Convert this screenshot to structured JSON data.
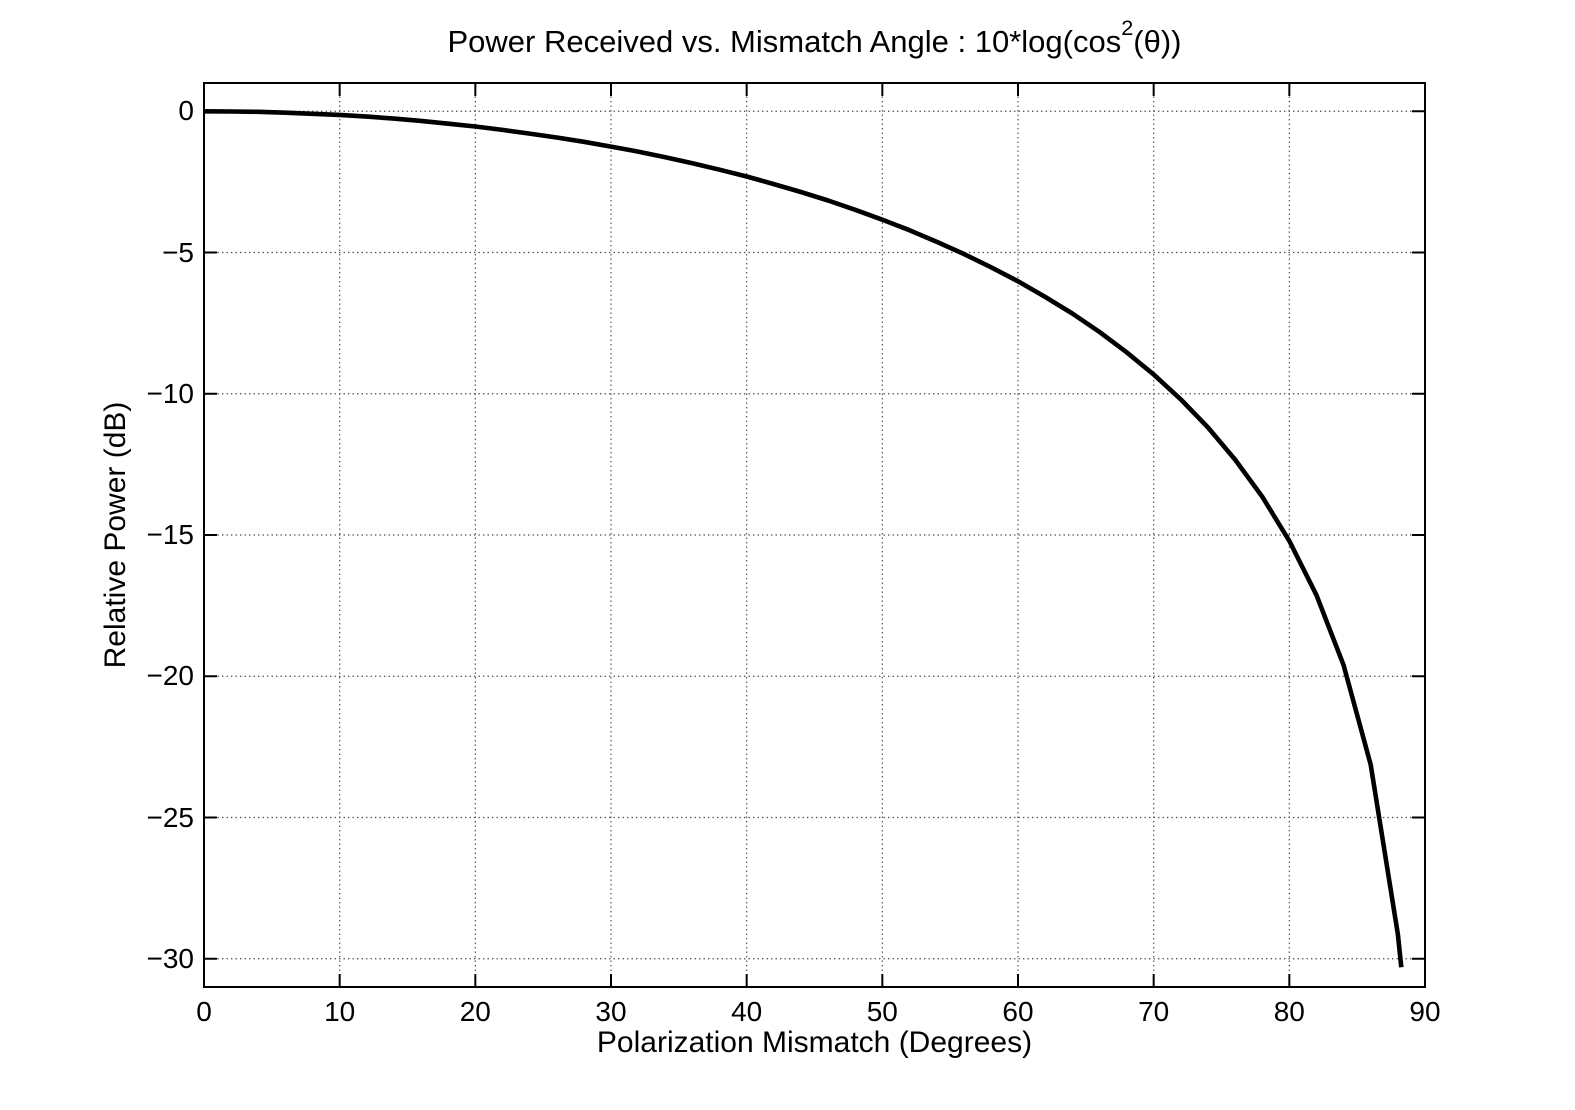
{
  "figure": {
    "background": "#ffffff",
    "text_color": "#000000"
  },
  "chart_data": {
    "type": "line",
    "title": "Power Received vs. Mismatch Angle : 10*log(cos2(θ))",
    "title_parts": {
      "pre": "Power Received vs. Mismatch Angle : 10*log(cos",
      "sup": "2",
      "post": "(θ))"
    },
    "xlabel": "Polarization Mismatch (Degrees)",
    "ylabel": "Relative Power (dB)",
    "xlim": [
      0,
      90
    ],
    "ylim": [
      -31,
      1
    ],
    "xticks": [
      0,
      10,
      20,
      30,
      40,
      50,
      60,
      70,
      80,
      90
    ],
    "xtick_labels": [
      "0",
      "10",
      "20",
      "30",
      "40",
      "50",
      "60",
      "70",
      "80",
      "90"
    ],
    "yticks": [
      0,
      -5,
      -10,
      -15,
      -20,
      -25,
      -30
    ],
    "ytick_labels": [
      "0",
      "−5",
      "−10",
      "−15",
      "−20",
      "−25",
      "−30"
    ],
    "grid": "dotted",
    "grid_color": "#4a4a4a",
    "axis_color": "#000000",
    "legend": "none",
    "series": [
      {
        "name": "10*log(cos2(θ))",
        "color": "#000000",
        "width": 4.6,
        "x": [
          0,
          2,
          4,
          6,
          8,
          10,
          12,
          14,
          16,
          18,
          20,
          22,
          24,
          26,
          28,
          30,
          32,
          34,
          36,
          38,
          40,
          42,
          44,
          46,
          48,
          50,
          52,
          54,
          56,
          58,
          60,
          62,
          64,
          66,
          68,
          70,
          72,
          74,
          76,
          78,
          80,
          82,
          84,
          86,
          88,
          88.25
        ],
        "y": [
          0,
          -0.01,
          -0.02,
          -0.05,
          -0.09,
          -0.13,
          -0.19,
          -0.26,
          -0.34,
          -0.44,
          -0.54,
          -0.66,
          -0.79,
          -0.93,
          -1.08,
          -1.25,
          -1.43,
          -1.63,
          -1.84,
          -2.07,
          -2.31,
          -2.58,
          -2.86,
          -3.16,
          -3.49,
          -3.84,
          -4.21,
          -4.62,
          -5.05,
          -5.52,
          -6.02,
          -6.57,
          -7.16,
          -7.81,
          -8.53,
          -9.32,
          -10.2,
          -11.19,
          -12.33,
          -13.64,
          -15.21,
          -17.13,
          -19.61,
          -23.13,
          -29.14,
          -30.3
        ]
      }
    ]
  }
}
